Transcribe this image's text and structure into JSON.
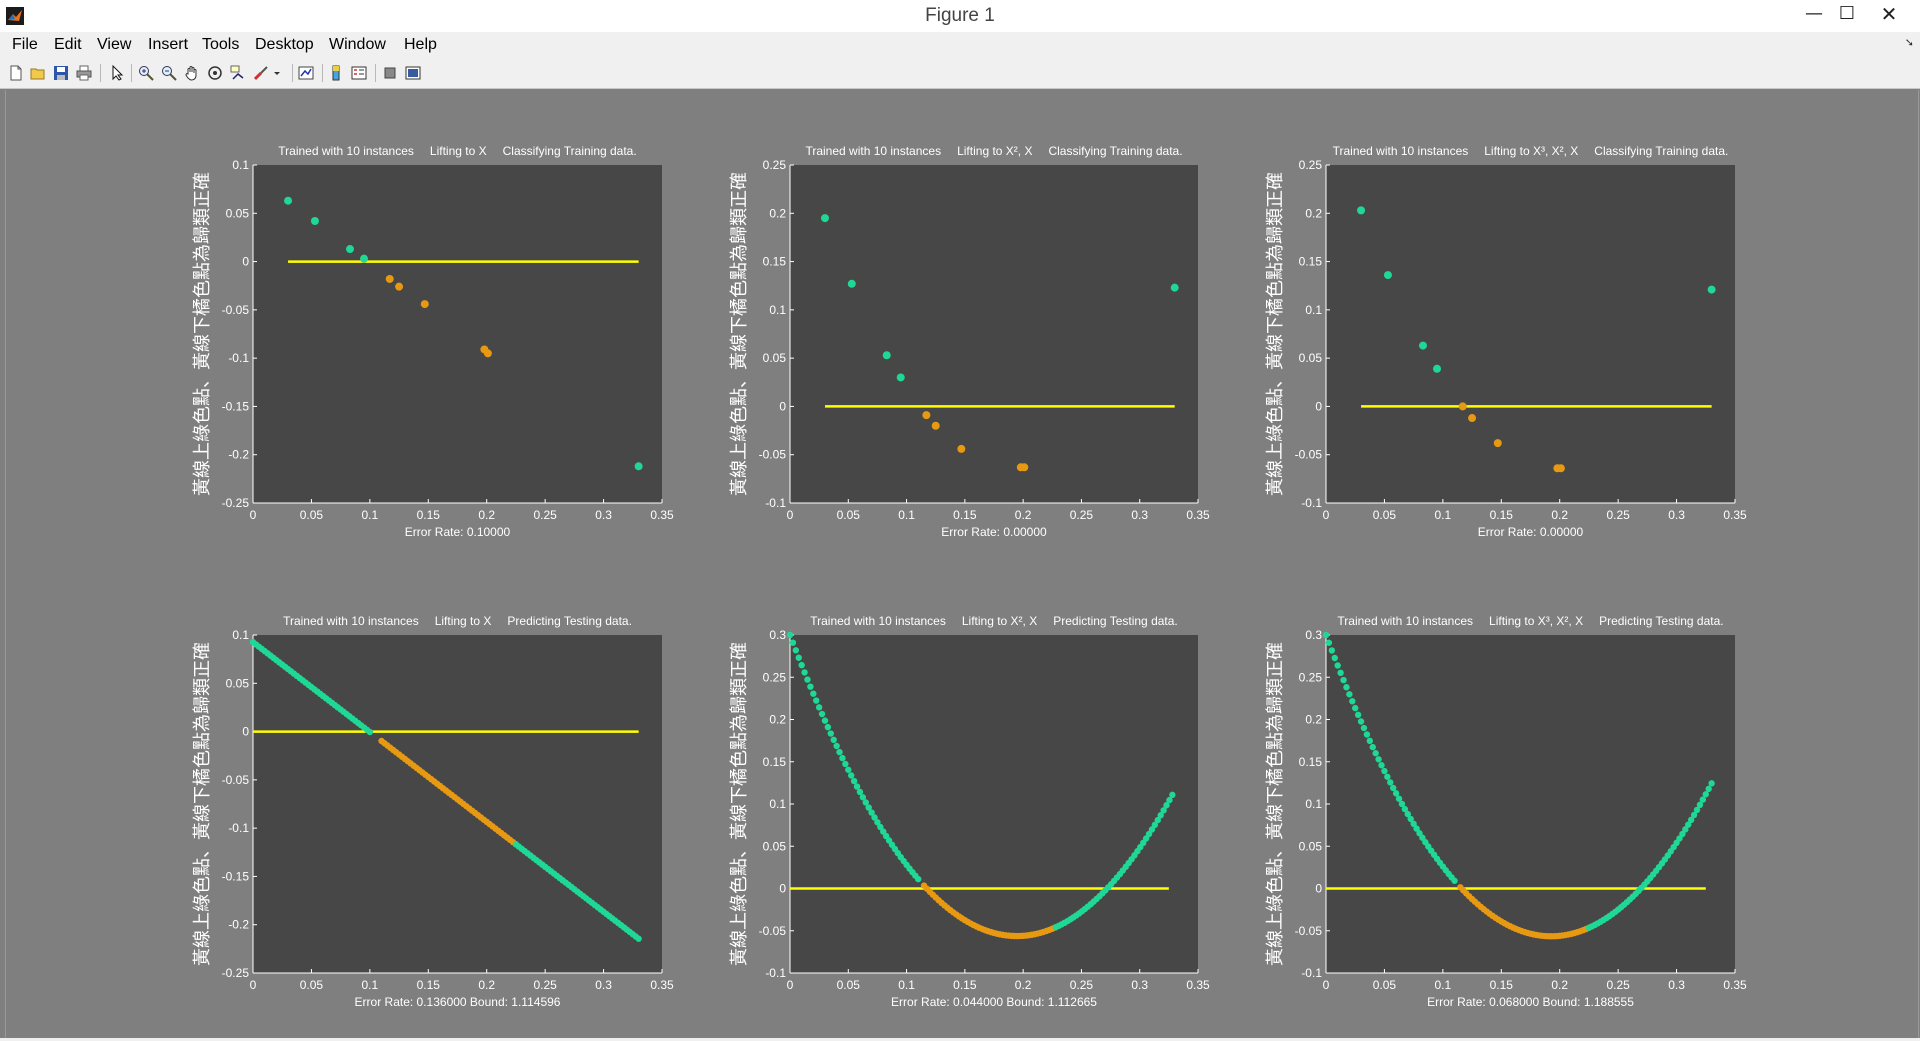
{
  "window": {
    "title": "Figure 1",
    "icon": "matlab-icon",
    "buttons": {
      "minimize": "—",
      "maximize": "☐",
      "close": "✕"
    }
  },
  "menu": [
    "File",
    "Edit",
    "View",
    "Insert",
    "Tools",
    "Desktop",
    "Window",
    "Help"
  ],
  "toolbar": [
    "new-figure-icon",
    "open-file-icon",
    "save-icon",
    "print-icon",
    "edit-plot-arrow-icon",
    "zoom-in-icon",
    "zoom-out-icon",
    "pan-hand-icon",
    "rotate-3d-icon",
    "data-cursor-icon",
    "brush-icon",
    "brush-dropdown-icon",
    "link-plot-icon",
    "insert-colorbar-icon",
    "insert-legend-icon",
    "hide-plot-tools-icon",
    "show-plot-tools-icon"
  ],
  "colors": {
    "axes_bg": "#474747",
    "figure_bg": "#7f7f7f",
    "text": "#ffffff",
    "correct_above": "#1fd896",
    "correct_below": "#e89912",
    "boundary": "#ffff00"
  },
  "common": {
    "ylabel": "黃線上綠色點、黃線下橘色點為歸類正確",
    "xticks": [
      "0",
      "0.05",
      "0.1",
      "0.15",
      "0.2",
      "0.25",
      "0.3",
      "0.35"
    ]
  },
  "chart_data": [
    {
      "type": "scatter",
      "title_parts": [
        "Trained with 10 instances",
        "Lifting to X",
        "Classifying Training data."
      ],
      "xlabel": "Error Rate: 0.10000",
      "xlim": [
        0,
        0.35
      ],
      "ylim": [
        -0.25,
        0.1
      ],
      "yticks": [
        "-0.25",
        "-0.2",
        "-0.15",
        "-0.1",
        "-0.05",
        "0",
        "0.05",
        "0.1"
      ],
      "boundary": {
        "x": [
          0.03,
          0.33
        ],
        "y": 0
      },
      "series": [
        {
          "color": "correct_above",
          "x": [
            0.03,
            0.053,
            0.083,
            0.095,
            0.33
          ],
          "y": [
            0.063,
            0.042,
            0.013,
            0.003,
            -0.212
          ]
        },
        {
          "color": "correct_below",
          "x": [
            0.117,
            0.125,
            0.147,
            0.198,
            0.201
          ],
          "y": [
            -0.018,
            -0.026,
            -0.044,
            -0.091,
            -0.095
          ]
        }
      ]
    },
    {
      "type": "scatter",
      "title_parts": [
        "Trained with 10 instances",
        "Lifting to X², X",
        "Classifying Training data."
      ],
      "xlabel": "Error Rate: 0.00000",
      "xlim": [
        0,
        0.35
      ],
      "ylim": [
        -0.1,
        0.25
      ],
      "yticks": [
        "-0.1",
        "-0.05",
        "0",
        "0.05",
        "0.1",
        "0.15",
        "0.2",
        "0.25"
      ],
      "boundary": {
        "x": [
          0.03,
          0.33
        ],
        "y": 0
      },
      "series": [
        {
          "color": "correct_above",
          "x": [
            0.03,
            0.053,
            0.083,
            0.095,
            0.33
          ],
          "y": [
            0.195,
            0.127,
            0.053,
            0.03,
            0.123
          ]
        },
        {
          "color": "correct_below",
          "x": [
            0.117,
            0.125,
            0.147,
            0.198,
            0.201
          ],
          "y": [
            -0.009,
            -0.02,
            -0.044,
            -0.063,
            -0.063
          ]
        }
      ]
    },
    {
      "type": "scatter",
      "title_parts": [
        "Trained with 10 instances",
        "Lifting to X³, X², X",
        "Classifying Training data."
      ],
      "xlabel": "Error Rate: 0.00000",
      "xlim": [
        0,
        0.35
      ],
      "ylim": [
        -0.1,
        0.25
      ],
      "yticks": [
        "-0.1",
        "-0.05",
        "0",
        "0.05",
        "0.1",
        "0.15",
        "0.2",
        "0.25"
      ],
      "boundary": {
        "x": [
          0.03,
          0.33
        ],
        "y": 0
      },
      "series": [
        {
          "color": "correct_above",
          "x": [
            0.03,
            0.053,
            0.083,
            0.095,
            0.33
          ],
          "y": [
            0.203,
            0.136,
            0.063,
            0.039,
            0.121
          ]
        },
        {
          "color": "correct_below",
          "x": [
            0.117,
            0.125,
            0.147,
            0.198,
            0.201
          ],
          "y": [
            0.0,
            -0.012,
            -0.038,
            -0.064,
            -0.064
          ]
        }
      ]
    },
    {
      "type": "scatter",
      "title_parts": [
        "Trained with 10 instances",
        "Lifting to X",
        "Predicting Testing data."
      ],
      "xlabel": "Error Rate: 0.136000    Bound: 1.114596",
      "xlim": [
        0,
        0.35
      ],
      "ylim": [
        -0.25,
        0.1
      ],
      "yticks": [
        "-0.25",
        "-0.2",
        "-0.15",
        "-0.1",
        "-0.05",
        "0",
        "0.05",
        "0.1"
      ],
      "boundary": {
        "x": [
          0,
          0.33
        ],
        "y": 0
      },
      "curve": {
        "kind": "poly",
        "coef": [
          0.0926,
          -0.9306
        ],
        "x_range": [
          0,
          0.33
        ]
      },
      "segments": [
        {
          "color": "correct_above",
          "x_from": 0,
          "x_to": 0.1
        },
        {
          "color": "correct_below",
          "x_from": 0.11,
          "x_to": 0.225
        },
        {
          "color": "correct_above",
          "x_from": 0.225,
          "x_to": 0.33
        }
      ]
    },
    {
      "type": "scatter",
      "title_parts": [
        "Trained with 10 instances",
        "Lifting to X², X",
        "Predicting Testing data."
      ],
      "xlabel": "Error Rate: 0.044000    Bound: 1.112665",
      "xlim": [
        0,
        0.35
      ],
      "ylim": [
        -0.1,
        0.3
      ],
      "yticks": [
        "-0.1",
        "-0.05",
        "0",
        "0.05",
        "0.1",
        "0.15",
        "0.2",
        "0.25",
        "0.3"
      ],
      "boundary": {
        "x": [
          0,
          0.325
        ],
        "y": 0
      },
      "curve": {
        "kind": "poly",
        "coef": [
          0.3,
          -3.66,
          9.4
        ],
        "x_range": [
          0,
          0.33
        ]
      },
      "segments": [
        {
          "color": "correct_above",
          "x_from": 0,
          "x_to": 0.11
        },
        {
          "color": "correct_below",
          "x_from": 0.115,
          "x_to": 0.228
        },
        {
          "color": "correct_above",
          "x_from": 0.228,
          "x_to": 0.33
        }
      ]
    },
    {
      "type": "scatter",
      "title_parts": [
        "Trained with 10 instances",
        "Lifting to X³, X², X",
        "Predicting Testing data."
      ],
      "xlabel": "Error Rate: 0.068000    Bound: 1.188555",
      "xlim": [
        0,
        0.35
      ],
      "ylim": [
        -0.1,
        0.3
      ],
      "yticks": [
        "-0.1",
        "-0.05",
        "0",
        "0.05",
        "0.1",
        "0.15",
        "0.2",
        "0.25",
        "0.3"
      ],
      "boundary": {
        "x": [
          0,
          0.325
        ],
        "y": 0
      },
      "curve": {
        "kind": "poly",
        "coef": [
          0.3,
          -3.7,
          9.6
        ],
        "x_range": [
          0,
          0.33
        ]
      },
      "segments": [
        {
          "color": "correct_above",
          "x_from": 0,
          "x_to": 0.11
        },
        {
          "color": "correct_below",
          "x_from": 0.115,
          "x_to": 0.225
        },
        {
          "color": "correct_above",
          "x_from": 0.225,
          "x_to": 0.33
        }
      ]
    }
  ]
}
